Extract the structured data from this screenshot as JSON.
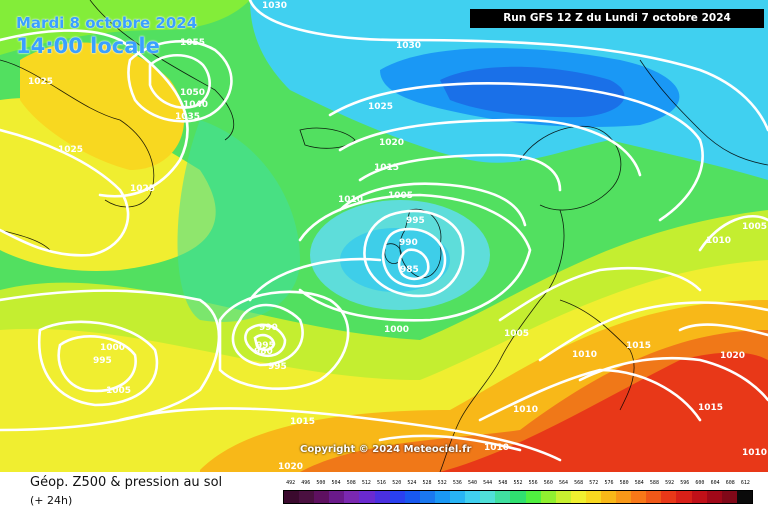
{
  "header": {
    "date_title": "Mardi 8 octobre 2024",
    "time_title": "14:00 locale",
    "run_banner": "Run GFS 12 Z du Lundi 7 octobre 2024"
  },
  "copyright": "Copyright © 2024 Meteociel.fr",
  "footer": {
    "title": "Géop. Z500 & pression au sol",
    "subtitle": "(+ 24h)"
  },
  "legend": {
    "labels": [
      "492",
      "496",
      "500",
      "504",
      "508",
      "512",
      "516",
      "520",
      "524",
      "528",
      "532",
      "536",
      "540",
      "544",
      "548",
      "552",
      "556",
      "560",
      "564",
      "568",
      "572",
      "576",
      "580",
      "584",
      "588",
      "592",
      "596",
      "600",
      "604",
      "608",
      "612"
    ],
    "colors": [
      "#3b0a2e",
      "#4a1040",
      "#5e1060",
      "#6a1a8a",
      "#7a28b0",
      "#6a2ad0",
      "#4a30e0",
      "#2a40f0",
      "#1858f0",
      "#1a78f0",
      "#1a98f5",
      "#28b4f5",
      "#40d0f0",
      "#50e0d8",
      "#40e0a0",
      "#30e070",
      "#50f040",
      "#90f030",
      "#c8f030",
      "#f0f030",
      "#f8d820",
      "#f8b818",
      "#f89818",
      "#f87818",
      "#f05818",
      "#e83818",
      "#d82018",
      "#c01018",
      "#a00818",
      "#800818",
      "#0a0a0a"
    ]
  },
  "map": {
    "isobars": [
      {
        "label": "1030",
        "style": "contour"
      },
      {
        "label": "1025",
        "style": "contour"
      },
      {
        "label": "1020",
        "style": "contour"
      },
      {
        "label": "1015",
        "style": "contour"
      },
      {
        "label": "1010",
        "style": "contour"
      },
      {
        "label": "1005",
        "style": "contour"
      },
      {
        "label": "1000",
        "style": "contour"
      },
      {
        "label": "995",
        "style": "contour"
      },
      {
        "label": "990",
        "style": "contour"
      },
      {
        "label": "985",
        "style": "contour"
      }
    ],
    "labels": [
      "1030",
      "1055",
      "1050",
      "1040",
      "1035",
      "1025",
      "1025",
      "1025",
      "1030",
      "1025",
      "1020",
      "1015",
      "1010",
      "1005",
      "995",
      "990",
      "985",
      "1010",
      "1005",
      "1000",
      "995",
      "990",
      "980",
      "995",
      "1000",
      "995",
      "1005",
      "1015",
      "1005",
      "1010",
      "1015",
      "1010",
      "1020",
      "1005",
      "1010",
      "1015",
      "1010",
      "1020"
    ]
  }
}
